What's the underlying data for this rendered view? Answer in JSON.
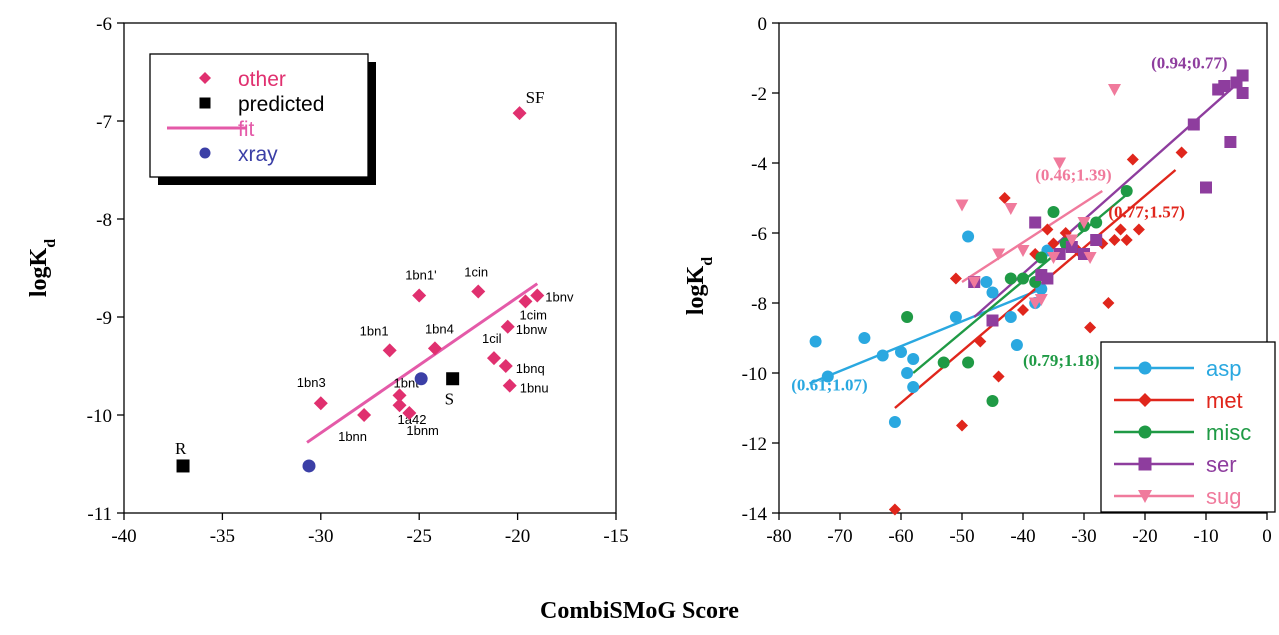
{
  "figure": {
    "shared_xlabel": "CombiSMoG Score"
  },
  "chart_data": [
    {
      "type": "scatter",
      "ylabel": {
        "base": "logK",
        "sub": "d"
      },
      "xlim": [
        -40,
        -15
      ],
      "ylim": [
        -11,
        -6
      ],
      "xticks": [
        "-40",
        "-35",
        "-30",
        "-25",
        "-20",
        "-15"
      ],
      "yticks": [
        "-11",
        "-10",
        "-9",
        "-8",
        "-7",
        "-6"
      ],
      "grid": false,
      "legend_position": "top-left",
      "legend": [
        {
          "label": "other",
          "marker": "diamond",
          "color": "#e0306f"
        },
        {
          "label": "predicted",
          "marker": "square",
          "color": "#000000"
        },
        {
          "label": "fit",
          "marker": "line",
          "color": "#e45aa8"
        },
        {
          "label": "xray",
          "marker": "circle",
          "color": "#3b3fa6"
        }
      ],
      "series": [
        {
          "name": "other",
          "marker": "diamond",
          "color": "#e0306f",
          "points": [
            {
              "x": -30.0,
              "y": -9.88,
              "label": "1bn3"
            },
            {
              "x": -27.8,
              "y": -10.0,
              "label": "1bnn"
            },
            {
              "x": -26.5,
              "y": -9.34,
              "label": "1bn1"
            },
            {
              "x": -26.0,
              "y": -9.8,
              "label": "1bnt"
            },
            {
              "x": -26.0,
              "y": -9.9,
              "label": "1a42"
            },
            {
              "x": -25.5,
              "y": -9.98,
              "label": "1bnm"
            },
            {
              "x": -24.2,
              "y": -9.32,
              "label": "1bn4"
            },
            {
              "x": -25.0,
              "y": -8.78,
              "label": "1bn1'"
            },
            {
              "x": -22.0,
              "y": -8.74,
              "label": "1cin"
            },
            {
              "x": -21.2,
              "y": -9.42,
              "label": "1cil"
            },
            {
              "x": -20.5,
              "y": -9.1,
              "label": "1bnw"
            },
            {
              "x": -20.6,
              "y": -9.5,
              "label": "1bnq"
            },
            {
              "x": -20.4,
              "y": -9.7,
              "label": "1bnu"
            },
            {
              "x": -19.6,
              "y": -8.84,
              "label": "1cim"
            },
            {
              "x": -19.0,
              "y": -8.78,
              "label": "1bnv"
            },
            {
              "x": -19.9,
              "y": -6.92,
              "label": "SF"
            }
          ]
        },
        {
          "name": "predicted",
          "marker": "square",
          "color": "#000000",
          "points": [
            {
              "x": -37.0,
              "y": -10.52,
              "label": "R"
            },
            {
              "x": -23.3,
              "y": -9.63,
              "label": "S"
            }
          ]
        },
        {
          "name": "xray",
          "marker": "circle",
          "color": "#3b3fa6",
          "points": [
            {
              "x": -30.6,
              "y": -10.52
            },
            {
              "x": -24.9,
              "y": -9.63
            }
          ]
        }
      ],
      "fit_line": {
        "x": [
          -30.7,
          -19.0
        ],
        "y": [
          -10.28,
          -8.66
        ],
        "color": "#e45aa8"
      }
    },
    {
      "type": "scatter",
      "ylabel": {
        "base": "logK",
        "sub": "d"
      },
      "xlim": [
        -80,
        0
      ],
      "ylim": [
        -14,
        0
      ],
      "xticks": [
        "-80",
        "-70",
        "-60",
        "-50",
        "-40",
        "-30",
        "-20",
        "-10",
        "0"
      ],
      "yticks": [
        "0",
        "-2",
        "-4",
        "-6",
        "-8",
        "-10",
        "-12",
        "-14"
      ],
      "grid": false,
      "legend_position": "bottom-right",
      "legend": [
        {
          "label": "asp",
          "marker": "circle",
          "color": "#2aa8e0"
        },
        {
          "label": "met",
          "marker": "diamond",
          "color": "#e0261c"
        },
        {
          "label": "misc",
          "marker": "circle",
          "color": "#1f9a45"
        },
        {
          "label": "ser",
          "marker": "square",
          "color": "#8e3d9e"
        },
        {
          "label": "sug",
          "marker": "triangle-down",
          "color": "#f07a9c"
        }
      ],
      "annotations": [
        {
          "text": "(0.61;1.07)",
          "x": -78,
          "y": -10.5,
          "color": "#2aa8e0"
        },
        {
          "text": "(0.79;1.18)",
          "x": -40,
          "y": -9.8,
          "color": "#1f9a45"
        },
        {
          "text": "(0.77;1.57)",
          "x": -26,
          "y": -5.55,
          "color": "#e0261c"
        },
        {
          "text": "(0.46;1.39)",
          "x": -38,
          "y": -4.5,
          "color": "#f07a9c"
        },
        {
          "text": "(0.94;0.77)",
          "x": -19,
          "y": -1.3,
          "color": "#8e3d9e"
        }
      ],
      "series": [
        {
          "name": "asp",
          "marker": "circle",
          "color": "#2aa8e0",
          "points": [
            {
              "x": -74,
              "y": -9.1
            },
            {
              "x": -72,
              "y": -10.1
            },
            {
              "x": -66,
              "y": -9.0
            },
            {
              "x": -63,
              "y": -9.5
            },
            {
              "x": -61,
              "y": -11.4
            },
            {
              "x": -60,
              "y": -9.4
            },
            {
              "x": -59,
              "y": -10.0
            },
            {
              "x": -58,
              "y": -9.6
            },
            {
              "x": -58,
              "y": -10.4
            },
            {
              "x": -51,
              "y": -8.4
            },
            {
              "x": -49,
              "y": -6.1
            },
            {
              "x": -46,
              "y": -7.4
            },
            {
              "x": -45,
              "y": -7.7
            },
            {
              "x": -42,
              "y": -8.4
            },
            {
              "x": -41,
              "y": -9.2
            },
            {
              "x": -38,
              "y": -8.0
            },
            {
              "x": -37,
              "y": -7.6
            },
            {
              "x": -36,
              "y": -6.5
            }
          ]
        },
        {
          "name": "met",
          "marker": "diamond",
          "color": "#e0261c",
          "points": [
            {
              "x": -61,
              "y": -13.9
            },
            {
              "x": -51,
              "y": -7.3
            },
            {
              "x": -50,
              "y": -11.5
            },
            {
              "x": -47,
              "y": -9.1
            },
            {
              "x": -44,
              "y": -10.1
            },
            {
              "x": -43,
              "y": -5.0
            },
            {
              "x": -42,
              "y": -7.3
            },
            {
              "x": -40,
              "y": -8.2
            },
            {
              "x": -38,
              "y": -6.6
            },
            {
              "x": -36,
              "y": -5.9
            },
            {
              "x": -35,
              "y": -6.3
            },
            {
              "x": -33,
              "y": -6.0
            },
            {
              "x": -31,
              "y": -6.5
            },
            {
              "x": -29,
              "y": -8.7
            },
            {
              "x": -27,
              "y": -6.3
            },
            {
              "x": -26,
              "y": -8.0
            },
            {
              "x": -25,
              "y": -6.2
            },
            {
              "x": -24,
              "y": -5.9
            },
            {
              "x": -23,
              "y": -6.2
            },
            {
              "x": -22,
              "y": -3.9
            },
            {
              "x": -21,
              "y": -5.9
            },
            {
              "x": -14,
              "y": -3.7
            }
          ]
        },
        {
          "name": "misc",
          "marker": "circle",
          "color": "#1f9a45",
          "points": [
            {
              "x": -59,
              "y": -8.4
            },
            {
              "x": -53,
              "y": -9.7
            },
            {
              "x": -49,
              "y": -9.7
            },
            {
              "x": -45,
              "y": -10.8
            },
            {
              "x": -42,
              "y": -7.3
            },
            {
              "x": -40,
              "y": -7.3
            },
            {
              "x": -38,
              "y": -7.4
            },
            {
              "x": -37,
              "y": -6.7
            },
            {
              "x": -35,
              "y": -5.4
            },
            {
              "x": -33,
              "y": -6.3
            },
            {
              "x": -30,
              "y": -5.8
            },
            {
              "x": -28,
              "y": -5.7
            },
            {
              "x": -23,
              "y": -4.8
            }
          ]
        },
        {
          "name": "ser",
          "marker": "square",
          "color": "#8e3d9e",
          "points": [
            {
              "x": -48,
              "y": -7.4
            },
            {
              "x": -45,
              "y": -8.5
            },
            {
              "x": -38,
              "y": -5.7
            },
            {
              "x": -37,
              "y": -7.2
            },
            {
              "x": -36,
              "y": -7.3
            },
            {
              "x": -34,
              "y": -6.6
            },
            {
              "x": -32,
              "y": -6.4
            },
            {
              "x": -30,
              "y": -6.6
            },
            {
              "x": -28,
              "y": -6.2
            },
            {
              "x": -12,
              "y": -2.9
            },
            {
              "x": -10,
              "y": -4.7
            },
            {
              "x": -8,
              "y": -1.9
            },
            {
              "x": -7,
              "y": -1.8
            },
            {
              "x": -6,
              "y": -3.4
            },
            {
              "x": -5,
              "y": -1.7
            },
            {
              "x": -4,
              "y": -1.5
            },
            {
              "x": -4,
              "y": -2.0
            }
          ]
        },
        {
          "name": "sug",
          "marker": "triangle-down",
          "color": "#f07a9c",
          "points": [
            {
              "x": -50,
              "y": -5.2
            },
            {
              "x": -48,
              "y": -7.4
            },
            {
              "x": -44,
              "y": -6.6
            },
            {
              "x": -42,
              "y": -5.3
            },
            {
              "x": -40,
              "y": -6.5
            },
            {
              "x": -38,
              "y": -8.0
            },
            {
              "x": -37,
              "y": -7.9
            },
            {
              "x": -35,
              "y": -6.7
            },
            {
              "x": -34,
              "y": -4.0
            },
            {
              "x": -32,
              "y": -6.2
            },
            {
              "x": -30,
              "y": -5.7
            },
            {
              "x": -29,
              "y": -6.7
            },
            {
              "x": -25,
              "y": -1.9
            }
          ]
        }
      ],
      "fit_lines": [
        {
          "series": "asp",
          "color": "#2aa8e0",
          "x": [
            -75,
            -37
          ],
          "y": [
            -10.3,
            -7.6
          ]
        },
        {
          "series": "met",
          "color": "#e0261c",
          "x": [
            -61,
            -15
          ],
          "y": [
            -11.0,
            -4.2
          ]
        },
        {
          "series": "misc",
          "color": "#1f9a45",
          "x": [
            -58,
            -23
          ],
          "y": [
            -10.0,
            -4.9
          ]
        },
        {
          "series": "ser",
          "color": "#8e3d9e",
          "x": [
            -48,
            -4
          ],
          "y": [
            -8.4,
            -1.6
          ]
        },
        {
          "series": "sug",
          "color": "#f07a9c",
          "x": [
            -50,
            -27
          ],
          "y": [
            -7.4,
            -4.8
          ]
        }
      ]
    }
  ]
}
